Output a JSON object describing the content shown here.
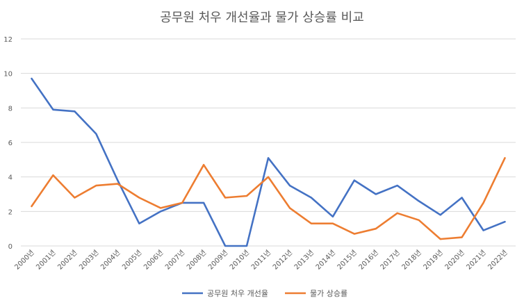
{
  "chart_data": {
    "type": "line",
    "title": "공무원 처우 개선율과 물가 상승률 비교",
    "xlabel": "",
    "ylabel": "",
    "ylim": [
      0,
      12
    ],
    "yticks": [
      "0",
      "2",
      "4",
      "6",
      "8",
      "10",
      "12"
    ],
    "grid": true,
    "legend_position": "bottom",
    "categories": [
      "2000년",
      "2001년",
      "2002년",
      "2003년",
      "2004년",
      "2005년",
      "2006년",
      "2007년",
      "2008년",
      "2009년",
      "2010년",
      "2011년",
      "2012년",
      "2013년",
      "2014년",
      "2015년",
      "2016년",
      "2017년",
      "2018년",
      "2019년",
      "2020년",
      "2021년",
      "2022년"
    ],
    "series": [
      {
        "name": "공무원 처우 개선율",
        "color": "#4472c4",
        "values": [
          9.7,
          7.9,
          7.8,
          6.5,
          3.8,
          1.3,
          2.0,
          2.5,
          2.5,
          0,
          0,
          5.1,
          3.5,
          2.8,
          1.7,
          3.8,
          3.0,
          3.5,
          2.6,
          1.8,
          2.8,
          0.9,
          1.4
        ]
      },
      {
        "name": "물가 상승률",
        "color": "#ed7d31",
        "values": [
          2.3,
          4.1,
          2.8,
          3.5,
          3.6,
          2.8,
          2.2,
          2.5,
          4.7,
          2.8,
          2.9,
          4.0,
          2.2,
          1.3,
          1.3,
          0.7,
          1.0,
          1.9,
          1.5,
          0.4,
          0.5,
          2.5,
          5.1
        ]
      }
    ]
  }
}
